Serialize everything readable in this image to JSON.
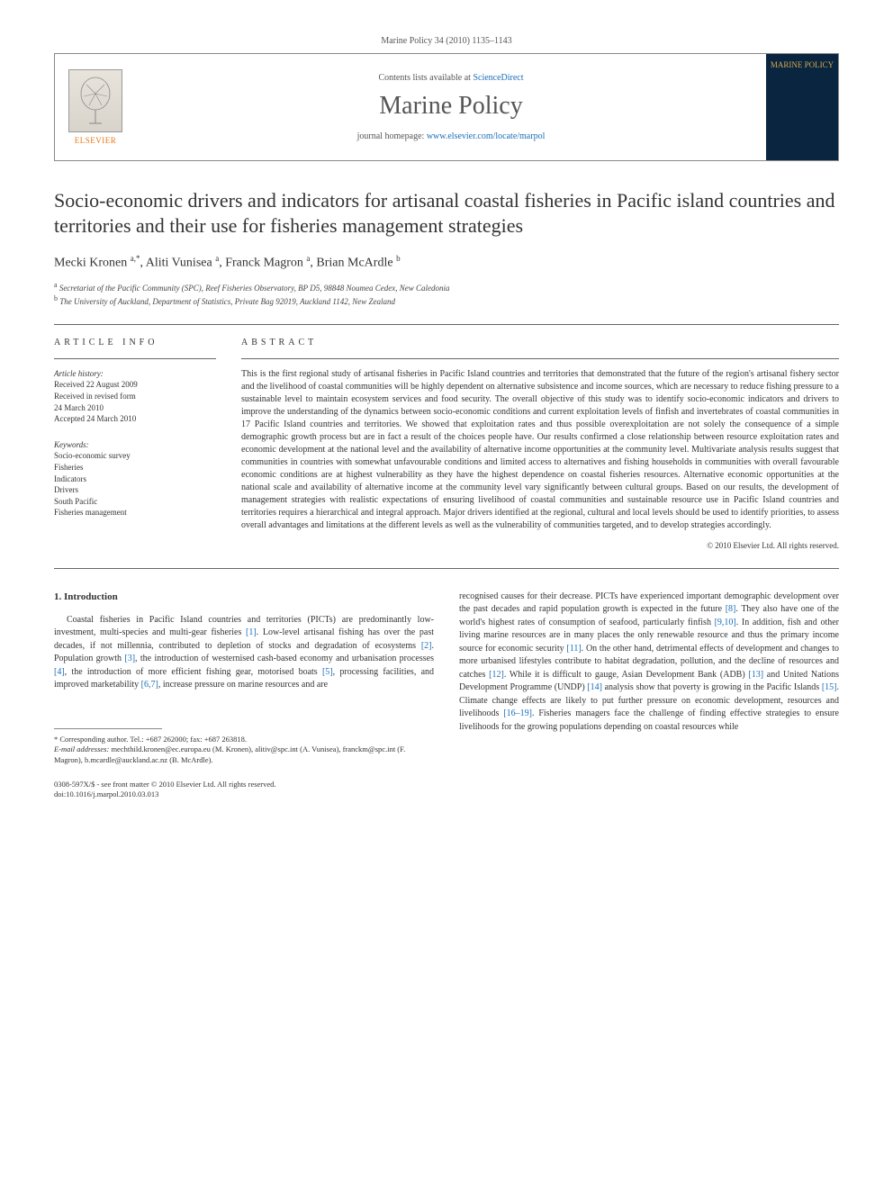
{
  "journal_ref": "Marine Policy 34 (2010) 1135–1143",
  "header": {
    "contents_prefix": "Contents lists available at ",
    "contents_link": "ScienceDirect",
    "journal_title": "Marine Policy",
    "homepage_prefix": "journal homepage: ",
    "homepage_url": "www.elsevier.com/locate/marpol",
    "elsevier": "ELSEVIER",
    "cover_title": "MARINE POLICY"
  },
  "article": {
    "title": "Socio-economic drivers and indicators for artisanal coastal fisheries in Pacific island countries and territories and their use for fisheries management strategies",
    "authors_html": "Mecki Kronen <sup>a,</sup><sup class='star-sup'>*</sup>, Aliti Vunisea <sup>a</sup>, Franck Magron <sup>a</sup>, Brian McArdle <sup>b</sup>",
    "affiliations": [
      {
        "sup": "a",
        "text": "Secretariat of the Pacific Community (SPC), Reef Fisheries Observatory, BP D5, 98848 Noumea Cedex, New Caledonia"
      },
      {
        "sup": "b",
        "text": "The University of Auckland, Department of Statistics, Private Bag 92019, Auckland 1142, New Zealand"
      }
    ]
  },
  "info": {
    "head": "ARTICLE INFO",
    "history_label": "Article history:",
    "history": [
      "Received 22 August 2009",
      "Received in revised form",
      "24 March 2010",
      "Accepted 24 March 2010"
    ],
    "kw_label": "Keywords:",
    "keywords": [
      "Socio-economic survey",
      "Fisheries",
      "Indicators",
      "Drivers",
      "South Pacific",
      "Fisheries management"
    ]
  },
  "abstract": {
    "head": "ABSTRACT",
    "text": "This is the first regional study of artisanal fisheries in Pacific Island countries and territories that demonstrated that the future of the region's artisanal fishery sector and the livelihood of coastal communities will be highly dependent on alternative subsistence and income sources, which are necessary to reduce fishing pressure to a sustainable level to maintain ecosystem services and food security. The overall objective of this study was to identify socio-economic indicators and drivers to improve the understanding of the dynamics between socio-economic conditions and current exploitation levels of finfish and invertebrates of coastal communities in 17 Pacific Island countries and territories. We showed that exploitation rates and thus possible overexploitation are not solely the consequence of a simple demographic growth process but are in fact a result of the choices people have. Our results confirmed a close relationship between resource exploitation rates and economic development at the national level and the availability of alternative income opportunities at the community level. Multivariate analysis results suggest that communities in countries with somewhat unfavourable conditions and limited access to alternatives and fishing households in communities with overall favourable economic conditions are at highest vulnerability as they have the highest dependence on coastal fisheries resources. Alternative economic opportunities at the national scale and availability of alternative income at the community level vary significantly between cultural groups. Based on our results, the development of management strategies with realistic expectations of ensuring livelihood of coastal communities and sustainable resource use in Pacific Island countries and territories requires a hierarchical and integral approach. Major drivers identified at the regional, cultural and local levels should be used to identify priorities, to assess overall advantages and limitations at the different levels as well as the vulnerability of communities targeted, and to develop strategies accordingly.",
    "copyright": "© 2010 Elsevier Ltd. All rights reserved."
  },
  "body": {
    "section_head": "1. Introduction",
    "left_para": "Coastal fisheries in Pacific Island countries and territories (PICTs) are predominantly low-investment, multi-species and multi-gear fisheries [1]. Low-level artisanal fishing has over the past decades, if not millennia, contributed to depletion of stocks and degradation of ecosystems [2]. Population growth [3], the introduction of westernised cash-based economy and urbanisation processes [4], the introduction of more efficient fishing gear, motorised boats [5], processing facilities, and improved marketability [6,7], increase pressure on marine resources and are",
    "right_para": "recognised causes for their decrease. PICTs have experienced important demographic development over the past decades and rapid population growth is expected in the future [8]. They also have one of the world's highest rates of consumption of seafood, particularly finfish [9,10]. In addition, fish and other living marine resources are in many places the only renewable resource and thus the primary income source for economic security [11]. On the other hand, detrimental effects of development and changes to more urbanised lifestyles contribute to habitat degradation, pollution, and the decline of resources and catches [12]. While it is difficult to gauge, Asian Development Bank (ADB) [13] and United Nations Development Programme (UNDP) [14] analysis show that poverty is growing in the Pacific Islands [15]. Climate change effects are likely to put further pressure on economic development, resources and livelihoods [16–19]. Fisheries managers face the challenge of finding effective strategies to ensure livelihoods for the growing populations depending on coastal resources while"
  },
  "footnotes": {
    "corr": "* Corresponding author. Tel.: +687 262000; fax: +687 263818.",
    "email_label": "E-mail addresses:",
    "emails": "mechthild.kronen@ec.europa.eu (M. Kronen), alitiv@spc.int (A. Vunisea), franckm@spc.int (F. Magron), b.mcardle@auckland.ac.nz (B. McArdle)."
  },
  "footer": {
    "line1": "0308-597X/$ - see front matter © 2010 Elsevier Ltd. All rights reserved.",
    "line2": "doi:10.1016/j.marpol.2010.03.013"
  },
  "refs": {
    "r1": "[1]",
    "r2": "[2]",
    "r3": "[3]",
    "r4": "[4]",
    "r5": "[5]",
    "r67": "[6,7]",
    "r8": "[8]",
    "r910": "[9,10]",
    "r11": "[11]",
    "r12": "[12]",
    "r13": "[13]",
    "r14": "[14]",
    "r15": "[15]",
    "r1619": "[16–19]"
  },
  "colors": {
    "link": "#1a6eb8",
    "elsevier_orange": "#e67817",
    "cover_bg": "#0a2540",
    "cover_gold": "#d4a94a"
  }
}
